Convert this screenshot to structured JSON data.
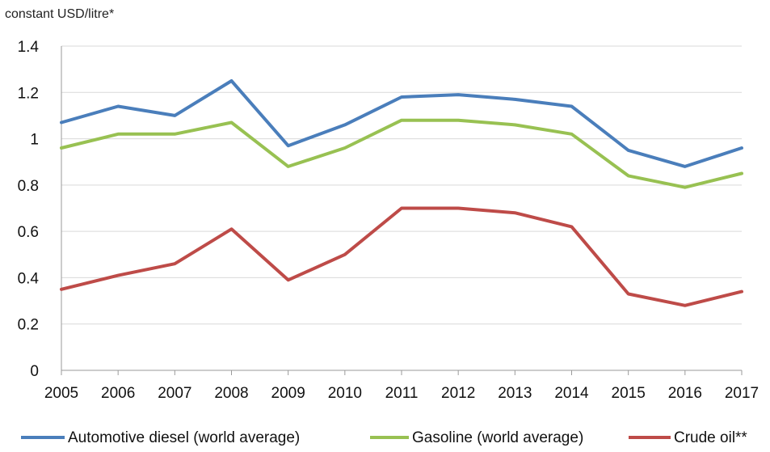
{
  "chart_data": {
    "type": "line",
    "title": "",
    "ylabel": "constant USD/litre*",
    "xlabel": "",
    "categories": [
      "2005",
      "2006",
      "2007",
      "2008",
      "2009",
      "2010",
      "2011",
      "2012",
      "2013",
      "2014",
      "2015",
      "2016",
      "2017"
    ],
    "yticks": [
      "0",
      "0.2",
      "0.4",
      "0.6",
      "0.8",
      "1",
      "1.2",
      "1.4"
    ],
    "ylim": [
      0,
      1.4
    ],
    "grid": true,
    "legend_position": "bottom",
    "series": [
      {
        "name": "Automotive diesel (world average)",
        "color": "#4a7ebb",
        "values": [
          1.07,
          1.14,
          1.1,
          1.25,
          0.97,
          1.06,
          1.18,
          1.19,
          1.17,
          1.14,
          0.95,
          0.88,
          0.96
        ]
      },
      {
        "name": "Gasoline (world average)",
        "color": "#98c152",
        "values": [
          0.96,
          1.02,
          1.02,
          1.07,
          0.88,
          0.96,
          1.08,
          1.08,
          1.06,
          1.02,
          0.84,
          0.79,
          0.85
        ]
      },
      {
        "name": "Crude oil**",
        "color": "#be4b48",
        "values": [
          0.35,
          0.41,
          0.46,
          0.61,
          0.39,
          0.5,
          0.7,
          0.7,
          0.68,
          0.62,
          0.33,
          0.28,
          0.34
        ]
      }
    ]
  }
}
